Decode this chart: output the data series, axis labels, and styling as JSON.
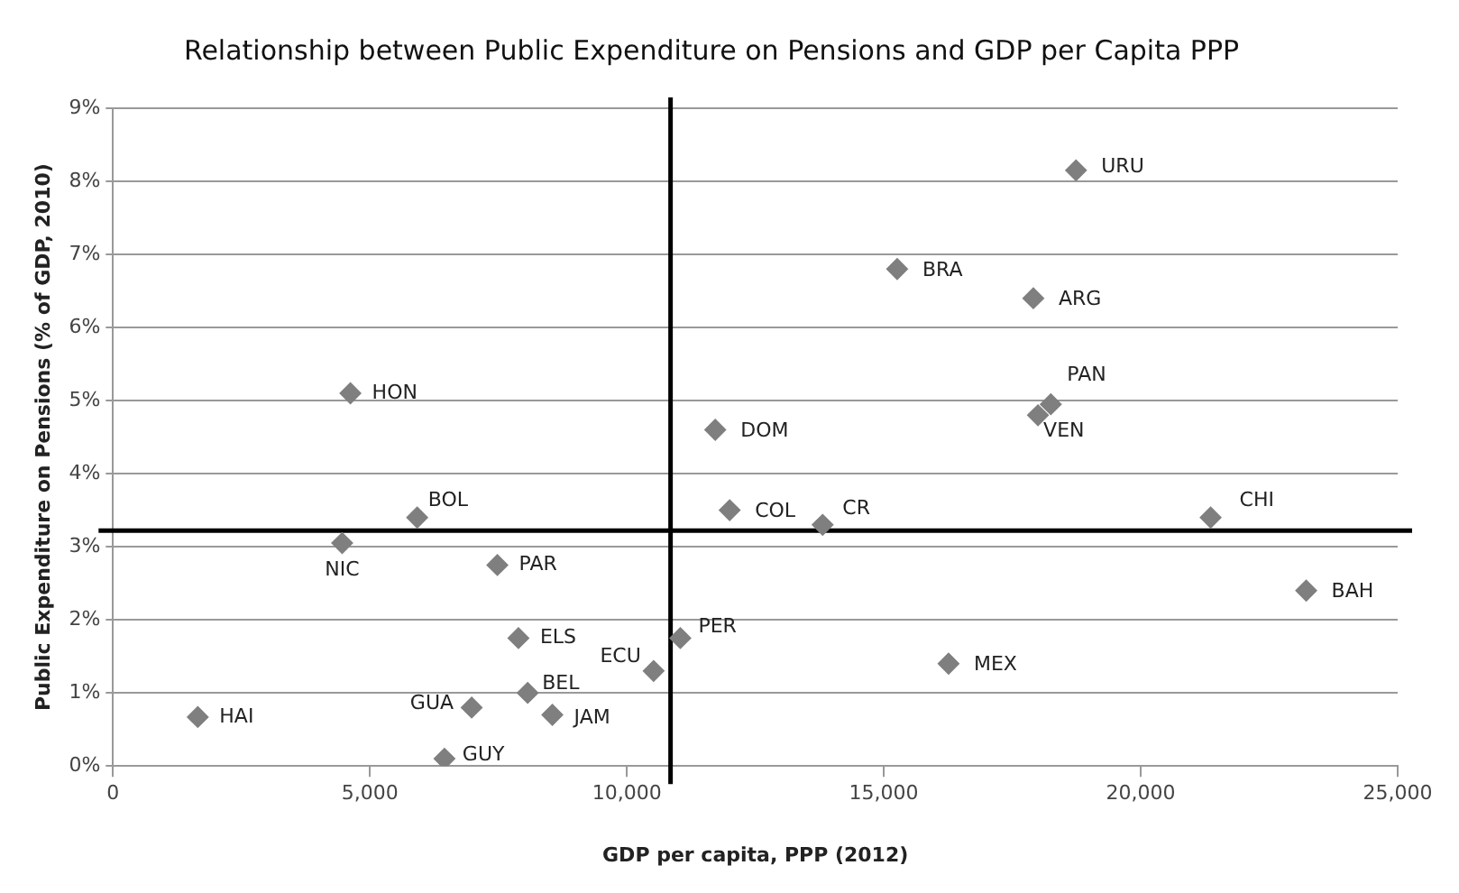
{
  "chart_data": {
    "type": "scatter",
    "title": "Relationship between Public Expenditure on Pensions and GDP per Capita PPP",
    "xlabel": "GDP per capita, PPP (2012)",
    "ylabel": "Public Expenditure on Pensions (% of GDP, 2010)",
    "x": [
      1650,
      4620,
      5920,
      4460,
      7480,
      7890,
      8070,
      6980,
      8550,
      6450,
      10520,
      11040,
      11720,
      12000,
      13810,
      16260,
      15260,
      17910,
      18740,
      18250,
      18000,
      21360,
      23220
    ],
    "series": [
      {
        "color": "#7f7f7f",
        "values": [
          0.67,
          5.1,
          3.4,
          3.05,
          2.75,
          1.75,
          1.0,
          0.8,
          0.7,
          0.1,
          1.3,
          1.75,
          4.6,
          3.5,
          3.3,
          1.4,
          6.8,
          6.4,
          8.15,
          4.95,
          4.8,
          3.4,
          2.4
        ]
      }
    ],
    "annotations": [
      {
        "text": "HAI",
        "x": 1650,
        "y": 0.67
      },
      {
        "text": "HON",
        "x": 4620,
        "y": 5.1
      },
      {
        "text": "BOL",
        "x": 5920,
        "y": 3.4
      },
      {
        "text": "NIC",
        "x": 4460,
        "y": 3.05
      },
      {
        "text": "PAR",
        "x": 7480,
        "y": 2.75
      },
      {
        "text": "ELS",
        "x": 7890,
        "y": 1.75
      },
      {
        "text": "BEL",
        "x": 8070,
        "y": 1.0
      },
      {
        "text": "GUA",
        "x": 6980,
        "y": 0.8
      },
      {
        "text": "JAM",
        "x": 8550,
        "y": 0.7
      },
      {
        "text": "GUY",
        "x": 6450,
        "y": 0.1
      },
      {
        "text": "ECU",
        "x": 10520,
        "y": 1.3
      },
      {
        "text": "PER",
        "x": 11040,
        "y": 1.75
      },
      {
        "text": "DOM",
        "x": 11720,
        "y": 4.6
      },
      {
        "text": "COL",
        "x": 12000,
        "y": 3.5
      },
      {
        "text": "CR",
        "x": 13810,
        "y": 3.3
      },
      {
        "text": "MEX",
        "x": 16260,
        "y": 1.4
      },
      {
        "text": "BRA",
        "x": 15260,
        "y": 6.8
      },
      {
        "text": "ARG",
        "x": 17910,
        "y": 6.4
      },
      {
        "text": "URU",
        "x": 18740,
        "y": 8.15
      },
      {
        "text": "PAN",
        "x": 18250,
        "y": 4.95
      },
      {
        "text": "VEN",
        "x": 18000,
        "y": 4.8
      },
      {
        "text": "CHI",
        "x": 21360,
        "y": 3.4
      },
      {
        "text": "BAH",
        "x": 23220,
        "y": 2.4
      }
    ],
    "ref_lines": [
      {
        "axis": "x",
        "value": 10850,
        "color": "#000000"
      },
      {
        "axis": "y",
        "value": 3.22,
        "color": "#000000"
      }
    ],
    "xlim": [
      0,
      25000
    ],
    "xticks": [
      0,
      {
        "value": 5000,
        "label": "5,000"
      },
      {
        "value": 10000,
        "label": "10,000"
      },
      {
        "value": 15000,
        "label": "15,000"
      },
      {
        "value": 20000,
        "label": "20,000"
      },
      {
        "value": 25000,
        "label": "25,000"
      }
    ],
    "ylim": [
      0,
      9
    ],
    "yticks": [
      {
        "value": 0,
        "label": "0%"
      },
      {
        "value": 1,
        "label": "1%"
      },
      {
        "value": 2,
        "label": "2%"
      },
      {
        "value": 3,
        "label": "3%"
      },
      {
        "value": 4,
        "label": "4%"
      },
      {
        "value": 5,
        "label": "5%"
      },
      {
        "value": 6,
        "label": "6%"
      },
      {
        "value": 7,
        "label": "7%"
      },
      {
        "value": 8,
        "label": "8%"
      },
      {
        "value": 9,
        "label": "9%"
      }
    ],
    "grid": "y",
    "legend": false,
    "marker": "diamond"
  }
}
